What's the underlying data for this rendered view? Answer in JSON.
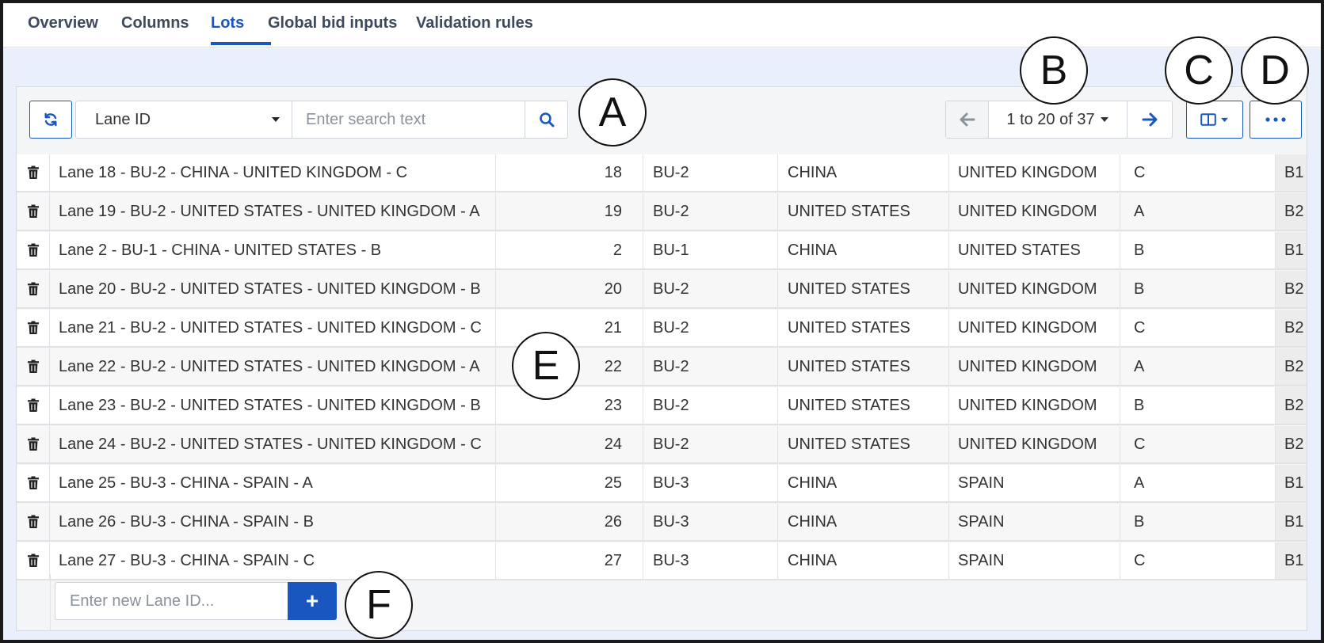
{
  "tabs": [
    {
      "label": "Overview",
      "active": false
    },
    {
      "label": "Columns",
      "active": false
    },
    {
      "label": "Lots",
      "active": true
    },
    {
      "label": "Global bid inputs",
      "active": false
    },
    {
      "label": "Validation rules",
      "active": false
    }
  ],
  "toolbar": {
    "refresh_icon": "refresh-icon",
    "field_select": {
      "value": "Lane ID",
      "icon": "caret-down-icon"
    },
    "search": {
      "placeholder": "Enter search text",
      "value": "",
      "icon": "search-icon"
    },
    "pagination": {
      "label": "1 to 20 of 37",
      "prev_icon": "arrow-left-icon",
      "next_icon": "arrow-right-icon"
    },
    "columns_icon": "columns-icon",
    "more_icon": "more-icon"
  },
  "table": {
    "rows": [
      {
        "name": "Lane 18 - BU-2 - CHINA - UNITED KINGDOM - C",
        "num": "18",
        "bu": "BU-2",
        "origin": "CHINA",
        "dest": "UNITED KINGDOM",
        "tier": "C",
        "extra": "B1"
      },
      {
        "name": "Lane 19 - BU-2 - UNITED STATES - UNITED KINGDOM - A",
        "num": "19",
        "bu": "BU-2",
        "origin": "UNITED STATES",
        "dest": "UNITED KINGDOM",
        "tier": "A",
        "extra": "B2"
      },
      {
        "name": "Lane 2 - BU-1 - CHINA - UNITED STATES - B",
        "num": "2",
        "bu": "BU-1",
        "origin": "CHINA",
        "dest": "UNITED STATES",
        "tier": "B",
        "extra": "B1"
      },
      {
        "name": "Lane 20 - BU-2 - UNITED STATES - UNITED KINGDOM - B",
        "num": "20",
        "bu": "BU-2",
        "origin": "UNITED STATES",
        "dest": "UNITED KINGDOM",
        "tier": "B",
        "extra": "B2"
      },
      {
        "name": "Lane 21 - BU-2 - UNITED STATES - UNITED KINGDOM - C",
        "num": "21",
        "bu": "BU-2",
        "origin": "UNITED STATES",
        "dest": "UNITED KINGDOM",
        "tier": "C",
        "extra": "B2"
      },
      {
        "name": "Lane 22 - BU-2 - UNITED STATES - UNITED KINGDOM - A",
        "num": "22",
        "bu": "BU-2",
        "origin": "UNITED STATES",
        "dest": "UNITED KINGDOM",
        "tier": "A",
        "extra": "B2"
      },
      {
        "name": "Lane 23 - BU-2 - UNITED STATES - UNITED KINGDOM - B",
        "num": "23",
        "bu": "BU-2",
        "origin": "UNITED STATES",
        "dest": "UNITED KINGDOM",
        "tier": "B",
        "extra": "B2"
      },
      {
        "name": "Lane 24 - BU-2 - UNITED STATES - UNITED KINGDOM - C",
        "num": "24",
        "bu": "BU-2",
        "origin": "UNITED STATES",
        "dest": "UNITED KINGDOM",
        "tier": "C",
        "extra": "B2"
      },
      {
        "name": "Lane 25 - BU-3 - CHINA - SPAIN - A",
        "num": "25",
        "bu": "BU-3",
        "origin": "CHINA",
        "dest": "SPAIN",
        "tier": "A",
        "extra": "B1"
      },
      {
        "name": "Lane 26 - BU-3 - CHINA - SPAIN - B",
        "num": "26",
        "bu": "BU-3",
        "origin": "CHINA",
        "dest": "SPAIN",
        "tier": "B",
        "extra": "B1"
      },
      {
        "name": "Lane 27 - BU-3 - CHINA - SPAIN - C",
        "num": "27",
        "bu": "BU-3",
        "origin": "CHINA",
        "dest": "SPAIN",
        "tier": "C",
        "extra": "B1"
      }
    ],
    "delete_icon": "trash-icon"
  },
  "add_row": {
    "placeholder": "Enter new Lane ID...",
    "value": "",
    "button_label": "+"
  },
  "callouts": [
    "A",
    "B",
    "C",
    "D",
    "E",
    "F"
  ],
  "colors": {
    "accent": "#1a56c0",
    "tab_text": "#3d4a5c",
    "content_bg": "#e9f0fb"
  }
}
